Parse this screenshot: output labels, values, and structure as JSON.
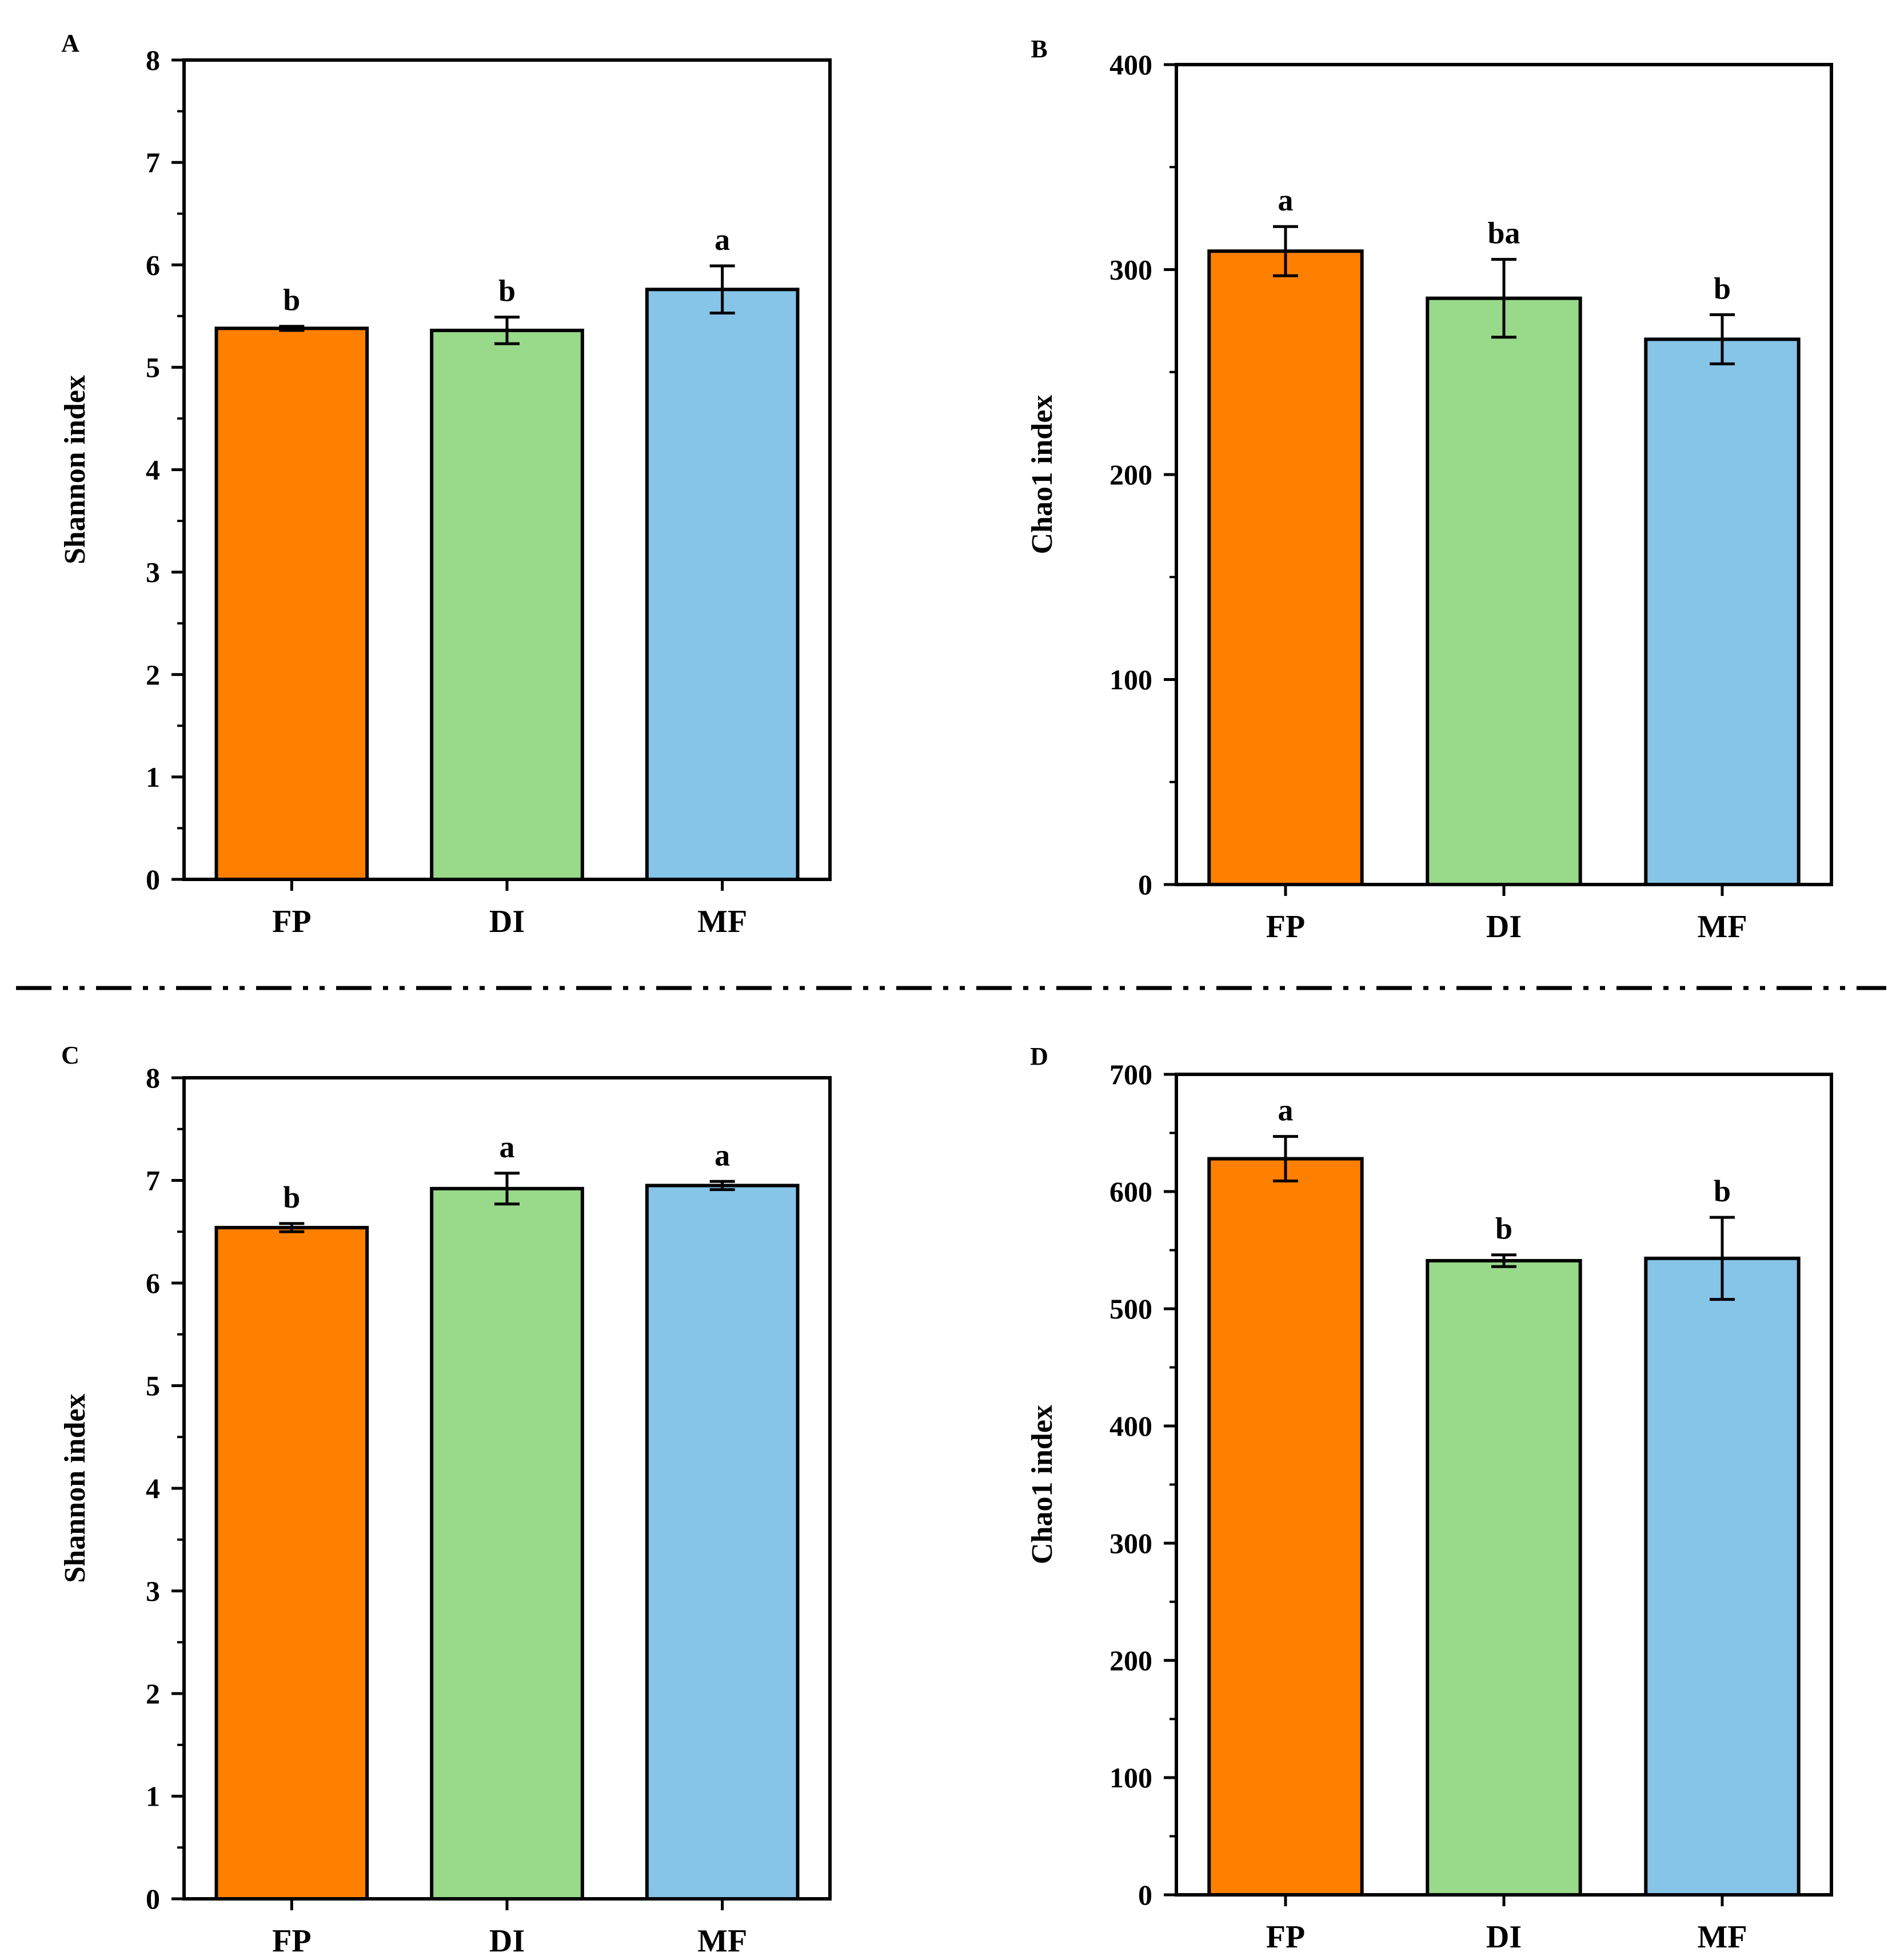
{
  "colors": {
    "FP": "#FF8000",
    "DI": "#98D98A",
    "MF": "#86C4E8",
    "stroke": "#000000",
    "background": "#FFFFFF"
  },
  "divider": {
    "style": "dash-dot-dot"
  },
  "chart_data": [
    {
      "panel": "A",
      "type": "bar",
      "categories": [
        "FP",
        "DI",
        "MF"
      ],
      "values": [
        5.38,
        5.36,
        5.76
      ],
      "errors": [
        0.02,
        0.13,
        0.23
      ],
      "significance": [
        "b",
        "b",
        "a"
      ],
      "xlabel": "",
      "ylabel": "Shannon index",
      "ylim": [
        0,
        8
      ],
      "yticks": [
        0,
        1,
        2,
        3,
        4,
        5,
        6,
        7,
        8
      ],
      "ytick_labels": [
        "0",
        "1",
        "2",
        "3",
        "4",
        "5",
        "6",
        "7",
        "8"
      ],
      "grid": false
    },
    {
      "panel": "B",
      "type": "bar",
      "categories": [
        "FP",
        "DI",
        "MF"
      ],
      "values": [
        309,
        286,
        266
      ],
      "errors": [
        12,
        19,
        12
      ],
      "significance": [
        "a",
        "ba",
        "b"
      ],
      "xlabel": "",
      "ylabel": "Chao1 index",
      "ylim": [
        0,
        400
      ],
      "yticks": [
        0,
        100,
        200,
        300,
        400
      ],
      "ytick_labels": [
        "0",
        "100",
        "200",
        "300",
        "400"
      ],
      "grid": false
    },
    {
      "panel": "C",
      "type": "bar",
      "categories": [
        "FP",
        "DI",
        "MF"
      ],
      "values": [
        6.54,
        6.92,
        6.95
      ],
      "errors": [
        0.04,
        0.15,
        0.04
      ],
      "significance": [
        "b",
        "a",
        "a"
      ],
      "xlabel": "",
      "ylabel": "Shannon index",
      "ylim": [
        0,
        8
      ],
      "yticks": [
        0,
        1,
        2,
        3,
        4,
        5,
        6,
        7,
        8
      ],
      "ytick_labels": [
        "0",
        "1",
        "2",
        "3",
        "4",
        "5",
        "6",
        "7",
        "8"
      ],
      "grid": false
    },
    {
      "panel": "D",
      "type": "bar",
      "categories": [
        "FP",
        "DI",
        "MF"
      ],
      "values": [
        628,
        541,
        543
      ],
      "errors": [
        19,
        5,
        35
      ],
      "significance": [
        "a",
        "b",
        "b"
      ],
      "xlabel": "",
      "ylabel": "Chao1 index",
      "ylim": [
        0,
        700
      ],
      "yticks": [
        0,
        100,
        200,
        300,
        400,
        500,
        600,
        700
      ],
      "ytick_labels": [
        "0",
        "100",
        "200",
        "300",
        "400",
        "500",
        "600",
        "700"
      ],
      "grid": false
    }
  ]
}
